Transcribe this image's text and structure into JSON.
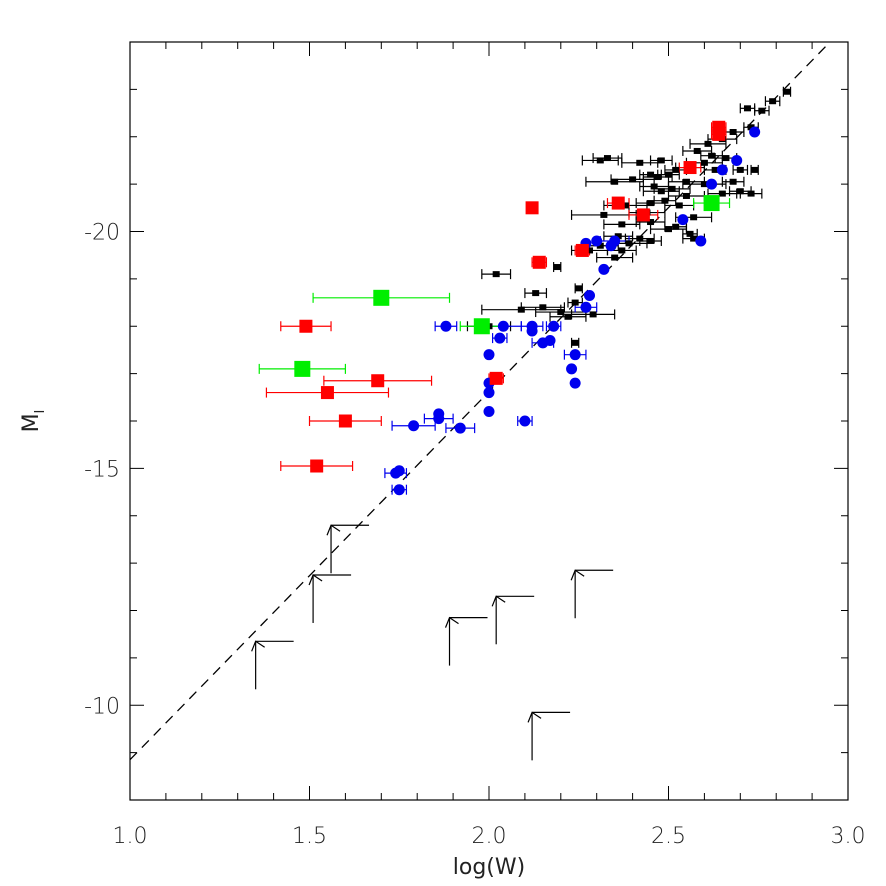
{
  "chart_data": {
    "type": "scatter",
    "xlabel": "log(W)",
    "ylabel": "M_I",
    "xlim": [
      1.0,
      3.0
    ],
    "ylim": [
      -8.0,
      -24.0
    ],
    "y_inverted": true,
    "x_ticks": [
      "1.0",
      "1.5",
      "2.0",
      "2.5",
      "3.0"
    ],
    "y_ticks": [
      "-10",
      "-15",
      "-20"
    ],
    "grid": false,
    "legend": "none",
    "colors": {
      "black": "#000000",
      "blue": "#0000ee",
      "red": "#ff0000",
      "green": "#00ee00",
      "fit_line": "#000000"
    },
    "fit_line": {
      "style": "dashed",
      "points": [
        [
          1.0,
          -8.85
        ],
        [
          2.95,
          -24.0
        ]
      ]
    },
    "series": [
      {
        "marker": "small-square",
        "color": "black",
        "points": [
          [
            2.83,
            -22.95,
            0.01
          ],
          [
            2.79,
            -22.75,
            0.02
          ],
          [
            2.76,
            -22.55,
            0.02
          ],
          [
            2.72,
            -22.6,
            0.02
          ],
          [
            2.73,
            -22.2,
            0.02
          ],
          [
            2.68,
            -22.1,
            0.03
          ],
          [
            2.65,
            -21.95,
            0.04
          ],
          [
            2.61,
            -21.85,
            0.05
          ],
          [
            2.62,
            -21.6,
            0.03
          ],
          [
            2.58,
            -21.7,
            0.04
          ],
          [
            2.66,
            -21.55,
            0.03
          ],
          [
            2.6,
            -21.45,
            0.05
          ],
          [
            2.7,
            -21.3,
            0.02
          ],
          [
            2.63,
            -21.3,
            0.03
          ],
          [
            2.56,
            -21.35,
            0.04
          ],
          [
            2.52,
            -21.3,
            0.03
          ],
          [
            2.48,
            -21.5,
            0.03
          ],
          [
            2.42,
            -21.45,
            0.05
          ],
          [
            2.31,
            -21.5,
            0.05
          ],
          [
            2.33,
            -21.55,
            0.04
          ],
          [
            2.74,
            -21.3,
            0.01
          ],
          [
            2.5,
            -21.2,
            0.03
          ],
          [
            2.47,
            -21.15,
            0.04
          ],
          [
            2.45,
            -21.2,
            0.03
          ],
          [
            2.4,
            -21.1,
            0.06
          ],
          [
            2.35,
            -21.05,
            0.08
          ],
          [
            2.55,
            -21.05,
            0.05
          ],
          [
            2.6,
            -21.0,
            0.06
          ],
          [
            2.68,
            -21.05,
            0.03
          ],
          [
            2.51,
            -20.9,
            0.05
          ],
          [
            2.48,
            -20.85,
            0.05
          ],
          [
            2.46,
            -20.95,
            0.04
          ],
          [
            2.7,
            -20.85,
            0.03
          ],
          [
            2.73,
            -20.8,
            0.03
          ],
          [
            2.65,
            -20.8,
            0.04
          ],
          [
            2.55,
            -20.75,
            0.05
          ],
          [
            2.49,
            -20.65,
            0.03
          ],
          [
            2.45,
            -20.6,
            0.04
          ],
          [
            2.38,
            -20.55,
            0.06
          ],
          [
            2.53,
            -20.55,
            0.04
          ],
          [
            2.44,
            -20.4,
            0.05
          ],
          [
            2.32,
            -20.35,
            0.09
          ],
          [
            2.57,
            -20.3,
            0.05
          ],
          [
            2.45,
            -20.2,
            0.04
          ],
          [
            2.37,
            -20.15,
            0.05
          ],
          [
            2.5,
            -20.05,
            0.05
          ],
          [
            2.52,
            -20.1,
            0.03
          ],
          [
            2.56,
            -19.95,
            0.02
          ],
          [
            2.57,
            -19.85,
            0.03
          ],
          [
            2.36,
            -19.9,
            0.04
          ],
          [
            2.42,
            -19.85,
            0.04
          ],
          [
            2.45,
            -19.8,
            0.03
          ],
          [
            2.39,
            -19.75,
            0.05
          ],
          [
            2.37,
            -19.6,
            0.04
          ],
          [
            2.31,
            -19.7,
            0.05
          ],
          [
            2.28,
            -19.6,
            0.05
          ],
          [
            2.35,
            -19.45,
            0.05
          ],
          [
            2.19,
            -19.25,
            0.01
          ],
          [
            2.02,
            -19.1,
            0.04
          ],
          [
            2.25,
            -18.8,
            0.01
          ],
          [
            2.13,
            -18.7,
            0.03
          ],
          [
            2.24,
            -18.5,
            0.02
          ],
          [
            2.15,
            -18.4,
            0.06
          ],
          [
            2.09,
            -18.35,
            0.11
          ],
          [
            2.2,
            -18.3,
            0.07
          ],
          [
            2.22,
            -18.2,
            0.05
          ],
          [
            2.29,
            -18.25,
            0.06
          ],
          [
            2.24,
            -17.65,
            0.01
          ],
          [
            2.0,
            -18.0,
            0.06
          ]
        ]
      },
      {
        "marker": "circle",
        "color": "blue",
        "points": [
          [
            2.74,
            -22.1,
            0.0
          ],
          [
            2.69,
            -21.5,
            0.0
          ],
          [
            2.65,
            -21.3,
            0.0
          ],
          [
            2.62,
            -21.0,
            0.0
          ],
          [
            2.54,
            -20.25,
            0.0
          ],
          [
            2.59,
            -19.8,
            0.0
          ],
          [
            2.35,
            -19.8,
            0.04
          ],
          [
            2.27,
            -19.75,
            0.0
          ],
          [
            2.3,
            -19.8,
            0.0
          ],
          [
            2.34,
            -19.7,
            0.0
          ],
          [
            2.32,
            -19.2,
            0.0
          ],
          [
            2.28,
            -18.65,
            0.0
          ],
          [
            2.27,
            -18.4,
            0.03
          ],
          [
            1.88,
            -18.0,
            0.03
          ],
          [
            2.04,
            -18.0,
            0.05
          ],
          [
            2.12,
            -18.0,
            0.03
          ],
          [
            2.18,
            -18.0,
            0.02
          ],
          [
            2.12,
            -17.9,
            0.0
          ],
          [
            2.03,
            -17.75,
            0.02
          ],
          [
            2.15,
            -17.65,
            0.03
          ],
          [
            2.17,
            -17.7,
            0.0
          ],
          [
            2.0,
            -17.4,
            0.0
          ],
          [
            2.24,
            -17.4,
            0.03
          ],
          [
            2.23,
            -17.1,
            0.0
          ],
          [
            2.24,
            -16.8,
            0.0
          ],
          [
            2.0,
            -16.8,
            0.0
          ],
          [
            2.0,
            -16.6,
            0.0
          ],
          [
            1.86,
            -16.15,
            0.0
          ],
          [
            2.0,
            -16.2,
            0.0
          ],
          [
            1.86,
            -16.05,
            0.04
          ],
          [
            2.1,
            -16.0,
            0.02
          ],
          [
            1.79,
            -15.9,
            0.06
          ],
          [
            1.92,
            -15.85,
            0.04
          ],
          [
            1.74,
            -14.9,
            0.03
          ],
          [
            1.75,
            -14.95,
            0.0
          ],
          [
            1.75,
            -14.55,
            0.02
          ]
        ]
      },
      {
        "marker": "large-square",
        "color": "red",
        "points": [
          [
            2.64,
            -22.2,
            0.02
          ],
          [
            2.64,
            -22.05,
            0.02
          ],
          [
            2.56,
            -21.35,
            0.03
          ],
          [
            2.36,
            -20.6,
            0.03
          ],
          [
            2.43,
            -20.35,
            0.04
          ],
          [
            2.12,
            -20.5,
            0.0
          ],
          [
            2.26,
            -19.6,
            0.02
          ],
          [
            2.14,
            -19.35,
            0.02
          ],
          [
            1.49,
            -18.0,
            0.07
          ],
          [
            2.02,
            -16.9,
            0.02
          ],
          [
            1.69,
            -16.85,
            0.15
          ],
          [
            1.55,
            -16.6,
            0.17
          ],
          [
            1.6,
            -16.0,
            0.1
          ],
          [
            1.52,
            -15.05,
            0.1
          ]
        ]
      },
      {
        "marker": "large-square",
        "color": "green",
        "points": [
          [
            2.62,
            -20.6,
            0.05
          ],
          [
            1.7,
            -18.6,
            0.19
          ],
          [
            1.98,
            -18.0,
            0.06
          ],
          [
            1.48,
            -17.1,
            0.12
          ]
        ]
      }
    ],
    "upper_limits": [
      [
        1.35,
        -11.35
      ],
      [
        1.51,
        -12.75
      ],
      [
        1.56,
        -13.8
      ],
      [
        1.89,
        -11.85
      ],
      [
        2.02,
        -12.3
      ],
      [
        2.24,
        -12.85
      ],
      [
        2.12,
        -9.85
      ]
    ]
  }
}
